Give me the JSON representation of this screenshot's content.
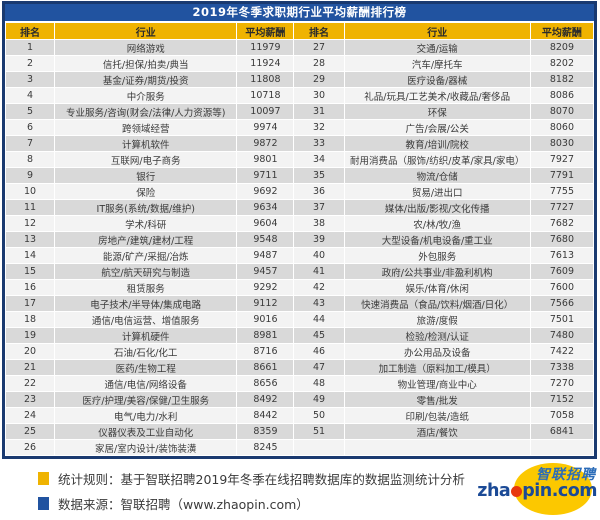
{
  "title": "2019年冬季求职期行业平均薪酬排行榜",
  "chart_data": {
    "type": "table",
    "title": "2019年冬季求职期行业平均薪酬排行榜",
    "columns": [
      "排名",
      "行业",
      "平均薪酬",
      "排名",
      "行业",
      "平均薪酬"
    ],
    "rows": [
      [
        "1",
        "网络游戏",
        "11979",
        "27",
        "交通/运输",
        "8209"
      ],
      [
        "2",
        "信托/担保/拍卖/典当",
        "11924",
        "28",
        "汽车/摩托车",
        "8202"
      ],
      [
        "3",
        "基金/证券/期货/投资",
        "11808",
        "29",
        "医疗设备/器械",
        "8182"
      ],
      [
        "4",
        "中介服务",
        "10718",
        "30",
        "礼品/玩具/工艺美术/收藏品/奢侈品",
        "8086"
      ],
      [
        "5",
        "专业服务/咨询(财会/法律/人力资源等)",
        "10097",
        "31",
        "环保",
        "8070"
      ],
      [
        "6",
        "跨领域经营",
        "9974",
        "32",
        "广告/会展/公关",
        "8060"
      ],
      [
        "7",
        "计算机软件",
        "9872",
        "33",
        "教育/培训/院校",
        "8030"
      ],
      [
        "8",
        "互联网/电子商务",
        "9801",
        "34",
        "耐用消费品（服饰/纺织/皮革/家具/家电）",
        "7927"
      ],
      [
        "9",
        "银行",
        "9711",
        "35",
        "物流/仓储",
        "7791"
      ],
      [
        "10",
        "保险",
        "9692",
        "36",
        "贸易/进出口",
        "7755"
      ],
      [
        "11",
        "IT服务(系统/数据/维护)",
        "9634",
        "37",
        "媒体/出版/影视/文化传播",
        "7727"
      ],
      [
        "12",
        "学术/科研",
        "9604",
        "38",
        "农/林/牧/渔",
        "7682"
      ],
      [
        "13",
        "房地产/建筑/建材/工程",
        "9548",
        "39",
        "大型设备/机电设备/重工业",
        "7680"
      ],
      [
        "14",
        "能源/矿产/采掘/冶炼",
        "9487",
        "40",
        "外包服务",
        "7613"
      ],
      [
        "15",
        "航空/航天研究与制造",
        "9457",
        "41",
        "政府/公共事业/非盈利机构",
        "7609"
      ],
      [
        "16",
        "租赁服务",
        "9292",
        "42",
        "娱乐/体育/休闲",
        "7600"
      ],
      [
        "17",
        "电子技术/半导体/集成电路",
        "9112",
        "43",
        "快速消费品（食品/饮料/烟酒/日化）",
        "7566"
      ],
      [
        "18",
        "通信/电信运营、增值服务",
        "9016",
        "44",
        "旅游/度假",
        "7501"
      ],
      [
        "19",
        "计算机硬件",
        "8981",
        "45",
        "检验/检测/认证",
        "7480"
      ],
      [
        "20",
        "石油/石化/化工",
        "8716",
        "46",
        "办公用品及设备",
        "7422"
      ],
      [
        "21",
        "医药/生物工程",
        "8661",
        "47",
        "加工制造（原料加工/模具）",
        "7338"
      ],
      [
        "22",
        "通信/电信/网络设备",
        "8656",
        "48",
        "物业管理/商业中心",
        "7270"
      ],
      [
        "23",
        "医疗/护理/美容/保健/卫生服务",
        "8492",
        "49",
        "零售/批发",
        "7152"
      ],
      [
        "24",
        "电气/电力/水利",
        "8442",
        "50",
        "印刷/包装/造纸",
        "7058"
      ],
      [
        "25",
        "仪器仪表及工业自动化",
        "8359",
        "51",
        "酒店/餐饮",
        "6841"
      ],
      [
        "26",
        "家居/室内设计/装饰装潢",
        "8245",
        "",
        "",
        ""
      ]
    ]
  },
  "footer": {
    "stat_rule": "统计规则：基于智联招聘2019年冬季在线招聘数据库的数据监测统计分析",
    "data_source": "数据来源：智联招聘（www.zhaopin.com）"
  },
  "logo": {
    "cn": "智联招聘",
    "en_pre": "zha",
    "en_post": "pin.com"
  },
  "colors": {
    "title_bg": "#2153a0",
    "header_bg": "#efb301",
    "frame_border": "#1a3a70",
    "row_odd": "#d9d9d9",
    "row_even": "#f3f3f3",
    "logo_yellow": "#fcc800",
    "logo_blue": "#1b4a96",
    "logo_cn_blue": "#2b6cb8",
    "logo_red": "#e8380d"
  }
}
